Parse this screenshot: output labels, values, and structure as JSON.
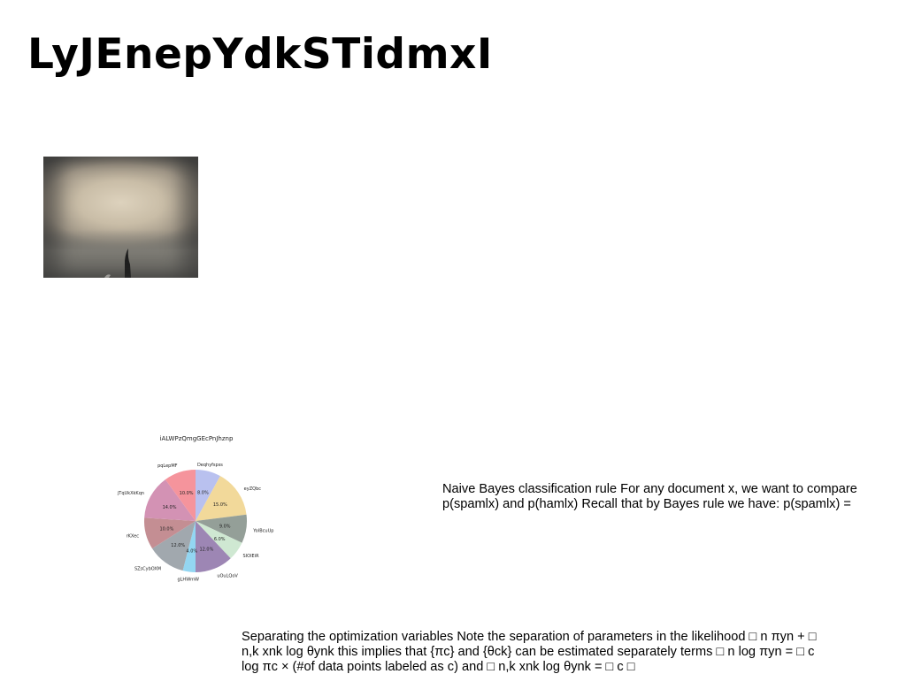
{
  "page": {
    "title": "LyJEnepYdkSTidmxI"
  },
  "image": {
    "description_icon": "photo"
  },
  "chart_data": {
    "type": "pie",
    "title": "iALWPzQmgGEcPnJhznp",
    "categories": [
      "Deqhyfspss",
      "eyZQbc",
      "YoIBcuUp",
      "SIOIEiR",
      "uOuLQoV",
      "gLHWmW",
      "SZsCybOXM",
      "rKXec",
      "jTqUkXkKqn",
      "pqLepMF"
    ],
    "values": [
      8.0,
      15.0,
      9.0,
      6.0,
      12.0,
      4.0,
      12.0,
      10.0,
      14.0,
      10.0
    ],
    "labels": [
      "8.0%",
      "15.0%",
      "9.0%",
      "6.0%",
      "12.0%",
      "4.0%",
      "12.0%",
      "10.0%",
      "14.0%",
      "10.0%"
    ],
    "colors": [
      "#b9c1ef",
      "#f2d99a",
      "#949f98",
      "#cfe8d2",
      "#9d86b4",
      "#93d6f2",
      "#a1a8ae",
      "#c48e93",
      "#d392b4",
      "#f5949c"
    ]
  },
  "text": {
    "paragraph1": "Naive Bayes classification rule For any document x, we want to compare p(spamlx) and p(hamlx) Recall that by Bayes rule we have: p(spamlx) =",
    "paragraph2": "Separating the optimization variables Note the separation of parameters in the likelihood □ n πyn + □ n,k xnk log θynk this implies that {πc} and {θck} can be estimated separately terms □ n log πyn = □ c log πc × (#of data points labeled as c) and □ n,k xnk log θynk = □ c □"
  }
}
